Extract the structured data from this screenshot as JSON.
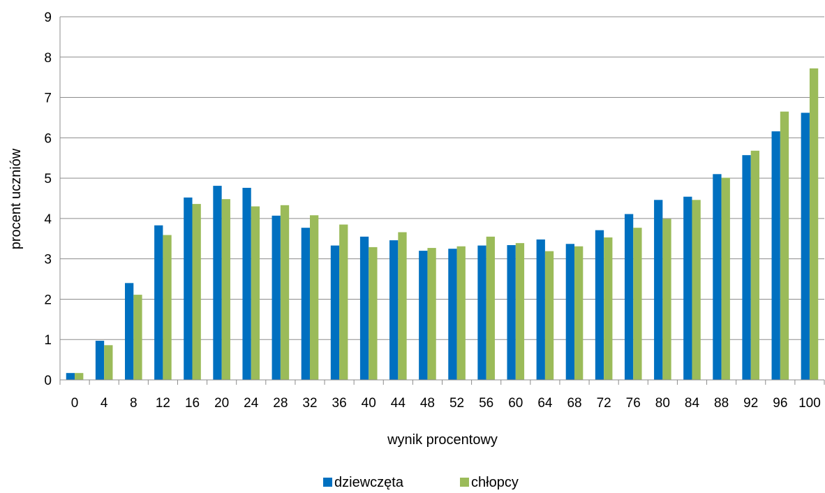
{
  "chart_data": {
    "type": "bar",
    "title": "",
    "xlabel": "wynik procentowy",
    "ylabel": "procent uczniów",
    "ylim": [
      0,
      9
    ],
    "yticks": [
      0,
      1,
      2,
      3,
      4,
      5,
      6,
      7,
      8,
      9
    ],
    "grid": true,
    "legend_position": "bottom",
    "categories": [
      "0",
      "4",
      "8",
      "12",
      "16",
      "20",
      "24",
      "28",
      "32",
      "36",
      "40",
      "44",
      "48",
      "52",
      "56",
      "60",
      "64",
      "68",
      "72",
      "76",
      "80",
      "84",
      "88",
      "92",
      "96",
      "100"
    ],
    "series": [
      {
        "name": "dziewczęta",
        "color": "#0070C0",
        "values": [
          0.17,
          0.97,
          2.4,
          3.83,
          4.52,
          4.81,
          4.76,
          4.07,
          3.77,
          3.33,
          3.55,
          3.46,
          3.2,
          3.25,
          3.33,
          3.34,
          3.48,
          3.37,
          3.71,
          4.11,
          4.46,
          4.54,
          5.1,
          5.57,
          6.16,
          6.62
        ]
      },
      {
        "name": "chłopcy",
        "color": "#9BBB59",
        "values": [
          0.17,
          0.86,
          2.11,
          3.59,
          4.36,
          4.48,
          4.3,
          4.33,
          4.08,
          3.85,
          3.29,
          3.66,
          3.27,
          3.31,
          3.55,
          3.39,
          3.19,
          3.31,
          3.53,
          3.77,
          3.99,
          4.46,
          5.01,
          5.68,
          6.65,
          7.72
        ]
      }
    ]
  }
}
